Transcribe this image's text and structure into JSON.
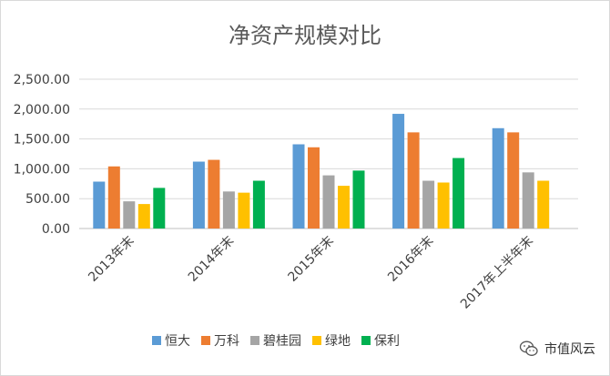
{
  "chart_data": {
    "type": "bar",
    "title": "净资产规模对比",
    "categories": [
      "2013年末",
      "2014年末",
      "2015年末",
      "2016年末",
      "2017年上半年末"
    ],
    "series": [
      {
        "name": "恒大",
        "color": "#5B9BD5",
        "values": [
          785,
          1120,
          1410,
          1920,
          1680
        ]
      },
      {
        "name": "万科",
        "color": "#ED7D31",
        "values": [
          1040,
          1150,
          1360,
          1610,
          1610
        ]
      },
      {
        "name": "碧桂园",
        "color": "#A5A5A5",
        "values": [
          455,
          620,
          890,
          800,
          940
        ]
      },
      {
        "name": "绿地",
        "color": "#FFC000",
        "values": [
          410,
          600,
          715,
          770,
          800
        ]
      },
      {
        "name": "保利",
        "color": "#00B050",
        "values": [
          680,
          800,
          970,
          1180,
          null
        ]
      }
    ],
    "ylim": [
      0,
      2500
    ],
    "yticks": [
      "0.00",
      "500.00",
      "1,000.00",
      "1,500.00",
      "2,000.00",
      "2,500.00"
    ],
    "ytick_values": [
      0,
      500,
      1000,
      1500,
      2000,
      2500
    ],
    "grid": true,
    "legend_position": "bottom"
  },
  "watermark": {
    "text": "市值风云",
    "icon": "wechat-official-account-icon"
  }
}
